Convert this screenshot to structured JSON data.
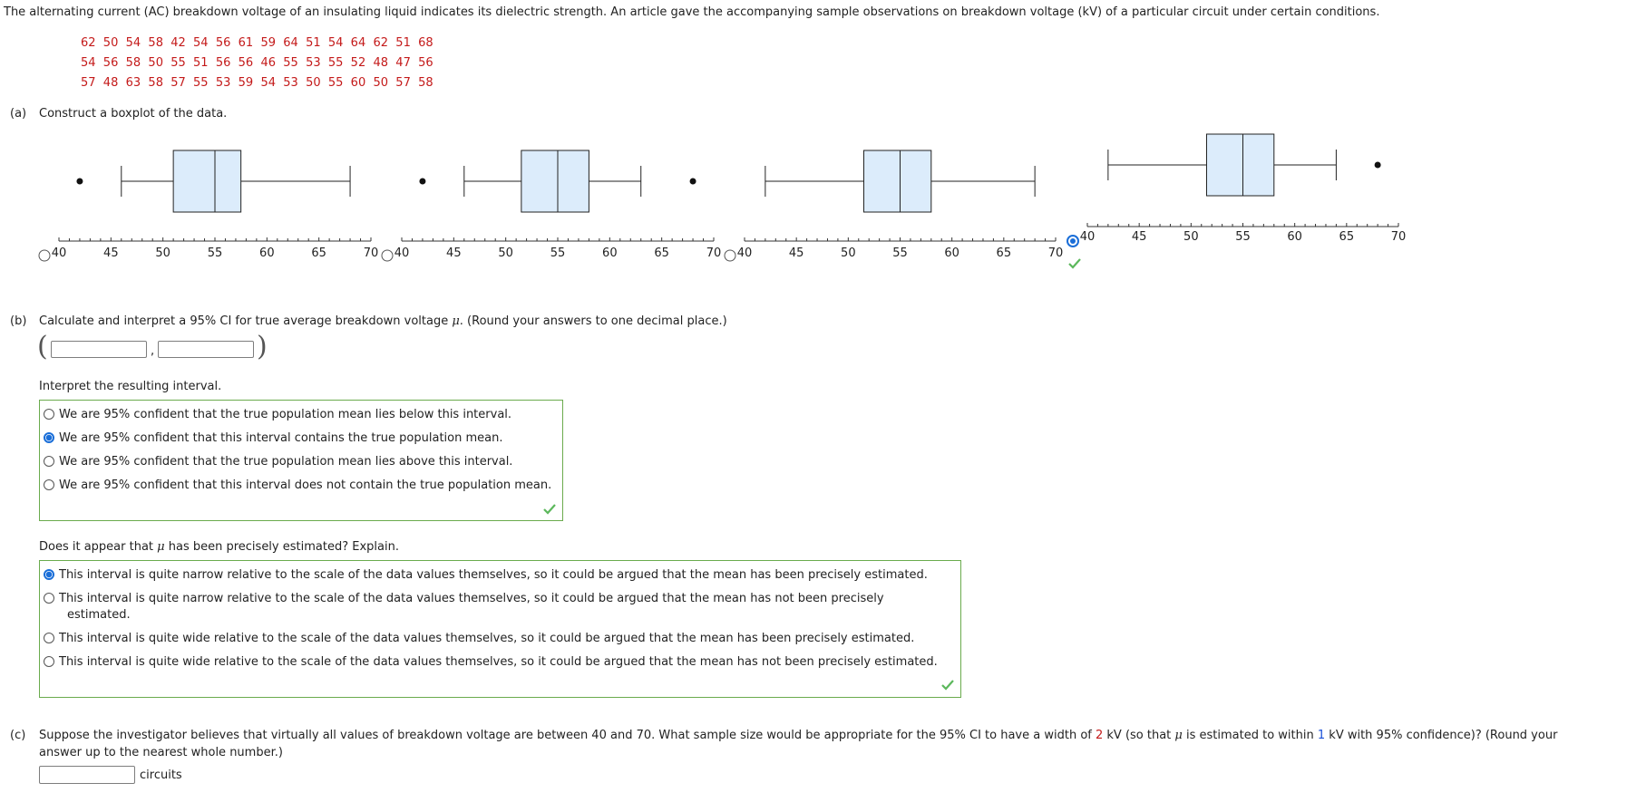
{
  "question": {
    "intro": "The alternating current (AC) breakdown voltage of an insulating liquid indicates its dielectric strength. An article gave the accompanying sample observations on breakdown voltage (kV) of a particular circuit under certain conditions.",
    "data_rows": [
      "62  50  54  58  42  54  56  61  59  64  51  54  64  62  51  68",
      "54  56  58  50  55  51  56  56  46  55  53  55  52  48  47  56",
      "57  48  63  58  57  55  53  59  54  53  50  55  60  50  57  58"
    ]
  },
  "part_a": {
    "label": "(a)",
    "prompt": "Construct a boxplot of the data.",
    "options": [
      {
        "selected": false,
        "axis_ticks": [
          "40",
          "45",
          "50",
          "55",
          "60",
          "65",
          "70"
        ],
        "whisker_low": 46,
        "q1": 51,
        "median": 55,
        "q3": 57.5,
        "whisker_high": 68,
        "outliers": [
          42
        ]
      },
      {
        "selected": false,
        "axis_ticks": [
          "40",
          "45",
          "50",
          "55",
          "60",
          "65",
          "70"
        ],
        "whisker_low": 46,
        "q1": 51.5,
        "median": 55,
        "q3": 58,
        "whisker_high": 63,
        "outliers": [
          42,
          68
        ]
      },
      {
        "selected": false,
        "axis_ticks": [
          "40",
          "45",
          "50",
          "55",
          "60",
          "65",
          "70"
        ],
        "whisker_low": 42,
        "q1": 51.5,
        "median": 55,
        "q3": 58,
        "whisker_high": 68,
        "outliers": []
      },
      {
        "selected": true,
        "axis_ticks": [
          "40",
          "45",
          "50",
          "55",
          "60",
          "65",
          "70"
        ],
        "whisker_low": 42,
        "q1": 51.5,
        "median": 55,
        "q3": 58,
        "whisker_high": 64,
        "outliers": [
          68
        ]
      }
    ]
  },
  "part_b": {
    "label": "(b)",
    "prompt_pre": "Calculate and interpret a 95% CI for true average breakdown voltage ",
    "mu": "μ",
    "prompt_post": ". (Round your answers to one decimal place.)",
    "ci_lower": "",
    "ci_upper": "",
    "comma": ",",
    "interpret_label": "Interpret the resulting interval.",
    "interpret_options": [
      {
        "text": "We are 95% confident that the true population mean lies below this interval.",
        "selected": false
      },
      {
        "text": "We are 95% confident that this interval contains the true population mean.",
        "selected": true
      },
      {
        "text": "We are 95% confident that the true population mean lies above this interval.",
        "selected": false
      },
      {
        "text": "We are 95% confident that this interval does not contain the true population mean.",
        "selected": false
      }
    ],
    "precise_pre": "Does it appear that ",
    "precise_post": " has been precisely estimated? Explain.",
    "precise_options": [
      {
        "text": "This interval is quite narrow relative to the scale of the data values themselves, so it could be argued that the mean has been precisely estimated.",
        "selected": true
      },
      {
        "text": "This interval is quite narrow relative to the scale of the data values themselves, so it could be argued that the mean has not been precisely",
        "text2": "estimated.",
        "selected": false
      },
      {
        "text": "This interval is quite wide relative to the scale of the data values themselves, so it could be argued that the mean has been precisely estimated.",
        "selected": false
      },
      {
        "text": "This interval is quite wide relative to the scale of the data values themselves, so it could be argued that the mean has not been precisely estimated.",
        "selected": false
      }
    ]
  },
  "part_c": {
    "label": "(c)",
    "s1": "Suppose the investigator believes that virtually all values of breakdown voltage are between 40 and 70. What sample size would be appropriate for the 95% CI to have a width of ",
    "width_val": "2",
    "s2": " kV (so that ",
    "s3": " is estimated to within ",
    "within_val": "1",
    "s4": " kV with 95% confidence)? (Round your",
    "line2": "answer up to the nearest whole number.)",
    "answer": "",
    "unit": "circuits"
  },
  "colors": {
    "data_red": "#c41a1a",
    "box_fill": "#dcecfb",
    "correct_green": "#5cb85c",
    "radio_blue": "#1a6ed8"
  }
}
